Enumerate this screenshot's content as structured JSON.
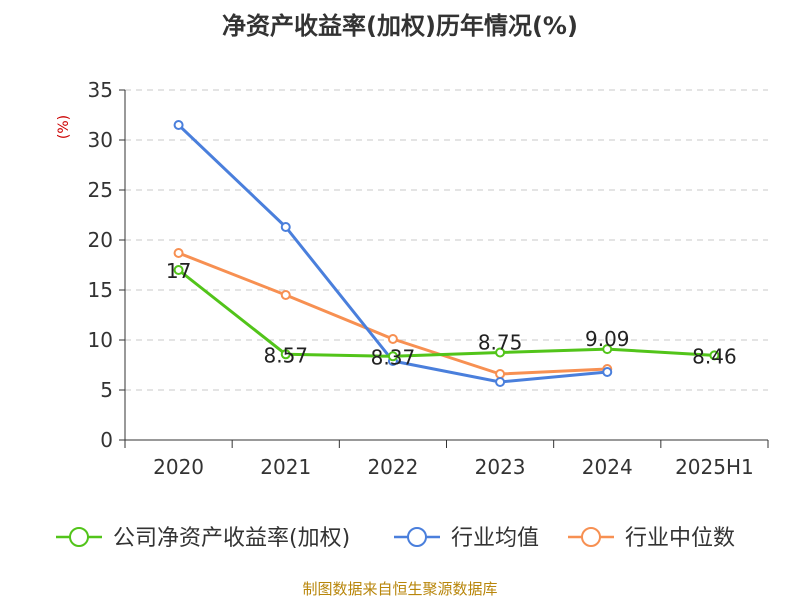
{
  "chart_data": {
    "type": "line",
    "title": "净资产收益率(加权)历年情况(%)",
    "ylabel": "(%)",
    "xlabel": "",
    "categories": [
      "2020",
      "2021",
      "2022",
      "2023",
      "2024",
      "2025H1"
    ],
    "ylim": [
      0,
      35
    ],
    "yticks": [
      0,
      5,
      10,
      15,
      20,
      25,
      30,
      35
    ],
    "grid": true,
    "legend_position": "bottom",
    "series": [
      {
        "name": "公司净资产收益率(加权)",
        "color": "#52c41a",
        "values": [
          17,
          8.57,
          8.37,
          8.75,
          9.09,
          8.46
        ],
        "labels": [
          "17",
          "8.57",
          "8.37",
          "8.75",
          "9.09",
          "8.46"
        ]
      },
      {
        "name": "行业均值",
        "color": "#4a7fdc",
        "values": [
          31.5,
          21.3,
          7.9,
          5.8,
          6.8,
          null
        ]
      },
      {
        "name": "行业中位数",
        "color": "#f79052",
        "values": [
          18.7,
          14.5,
          10.1,
          6.6,
          7.1,
          null
        ]
      }
    ],
    "source": "制图数据来自恒生聚源数据库"
  }
}
